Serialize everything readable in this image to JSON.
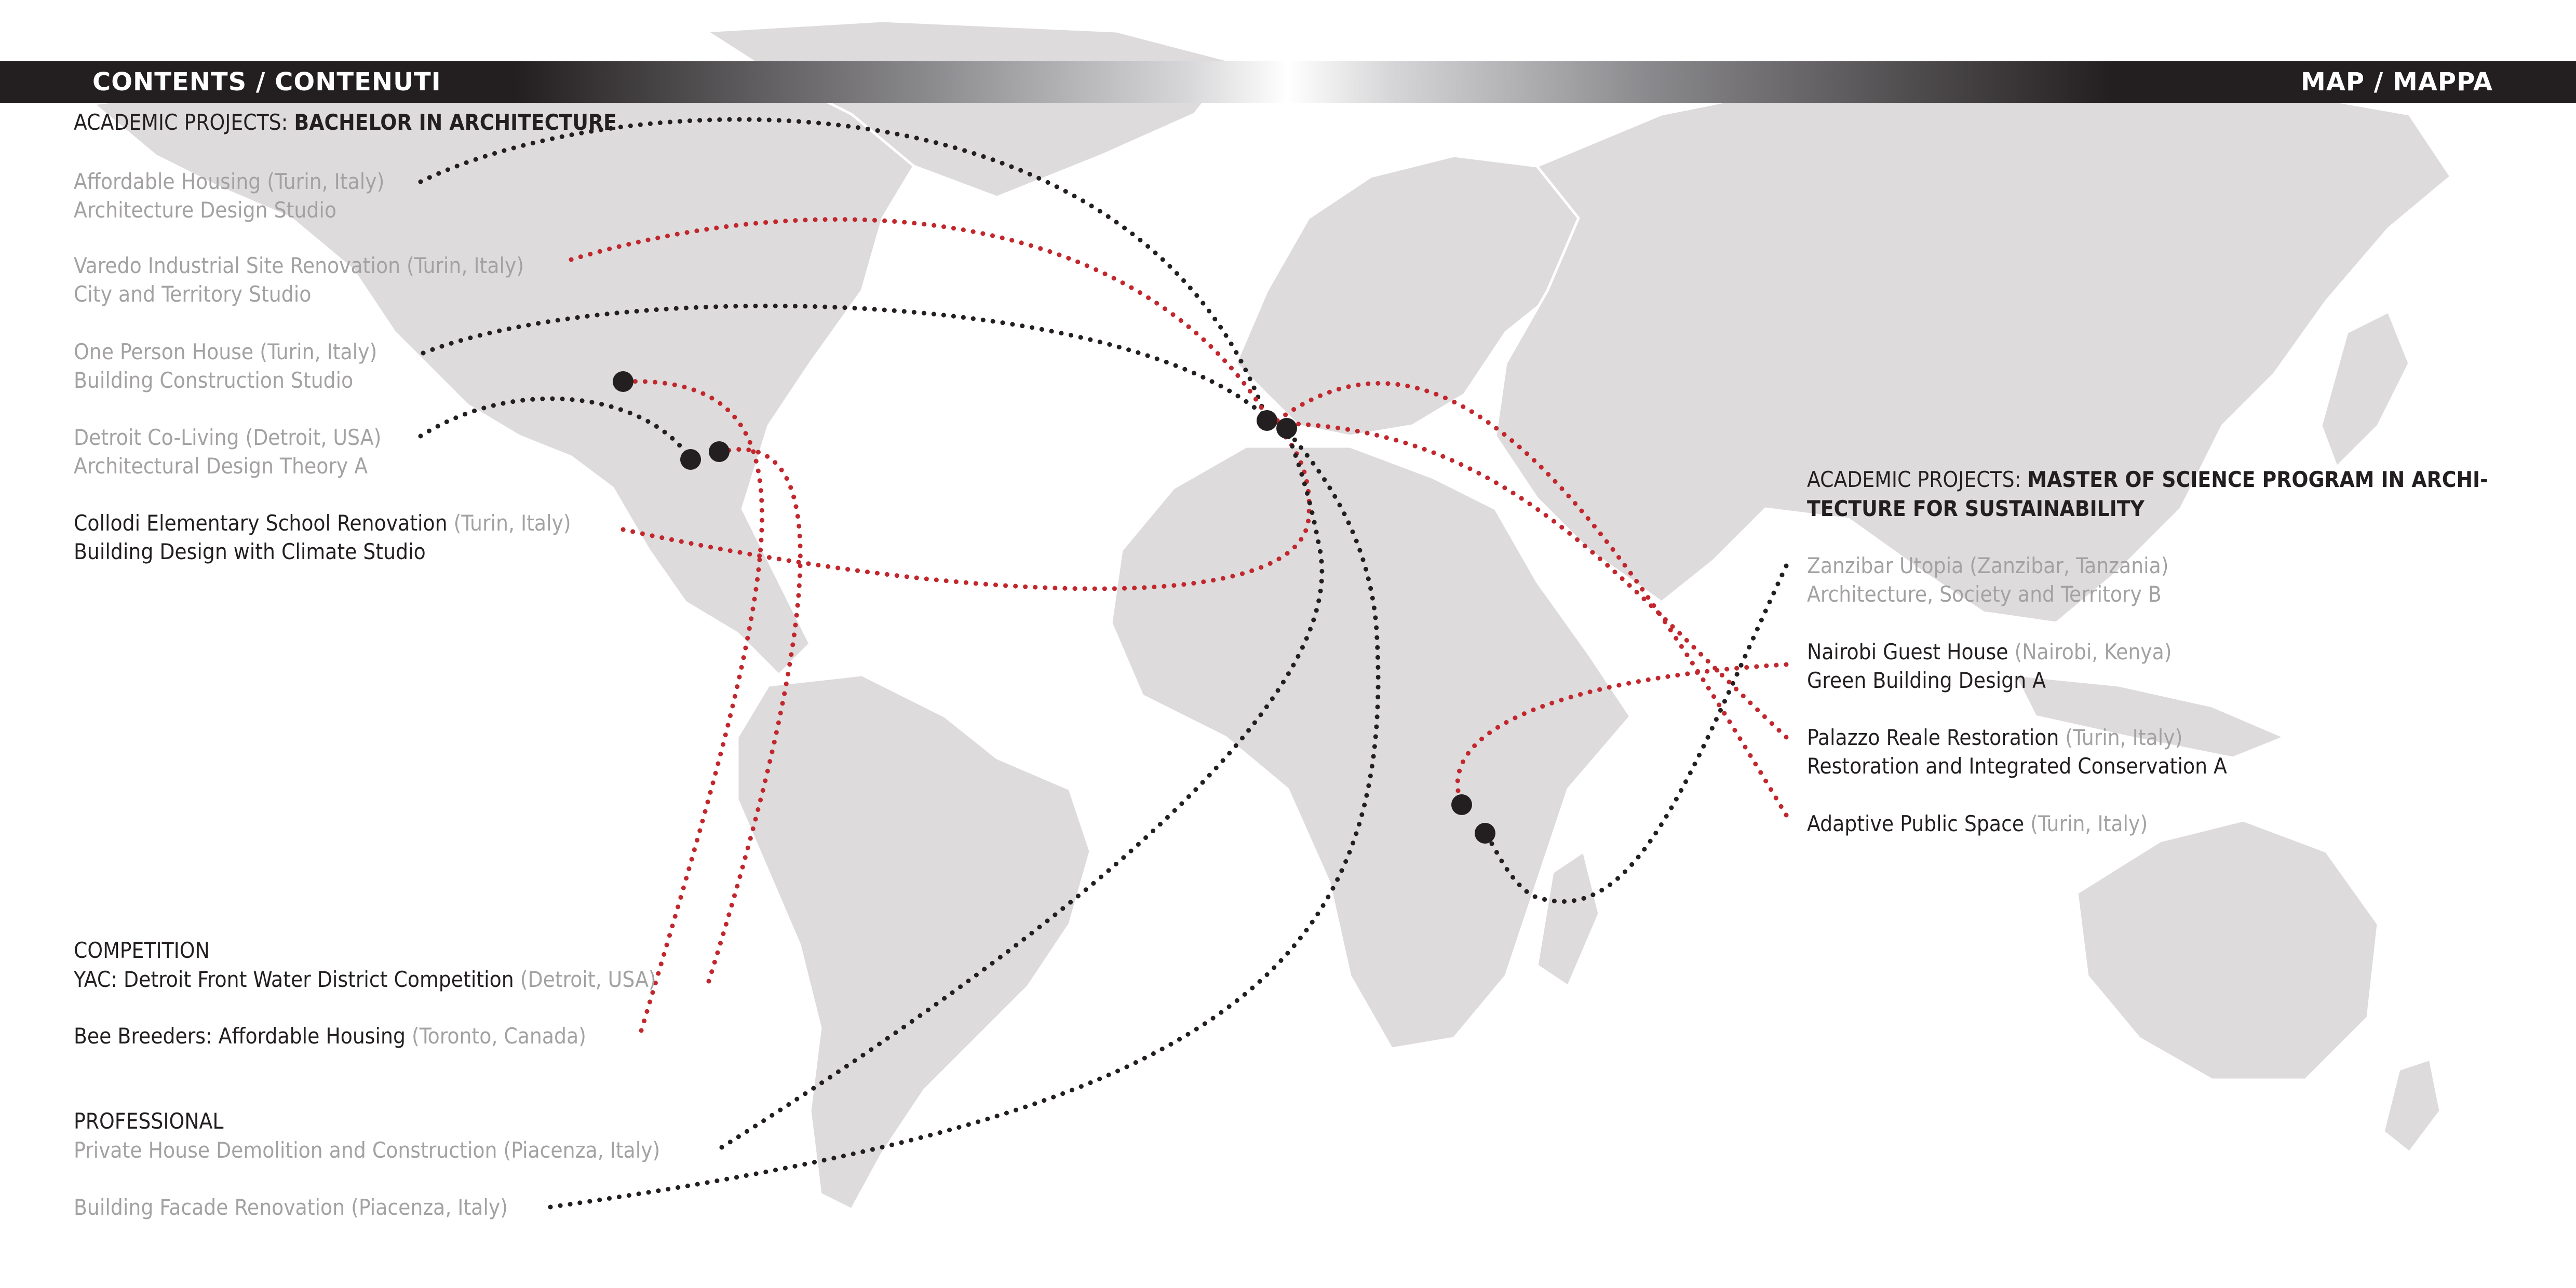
{
  "header": {
    "left_title": "CONTENTS / CONTENUTI",
    "right_title": "MAP / MAPPA"
  },
  "colors": {
    "banner_dark": "#231f20",
    "land": "#dddbdc",
    "route_black": "#231f20",
    "route_red": "#c1272d",
    "text_dark": "#231f20",
    "text_grey": "#a3a1a2",
    "pin": "#231f20"
  },
  "bachelor": {
    "prefix": "ACADEMIC PROJECTS: ",
    "name": "BACHELOR IN ARCHITECTURE",
    "items": [
      {
        "title": "Affordable Housing (Turin, Italy)",
        "location": "",
        "course": "Architecture Design Studio",
        "tone": "grey",
        "route": "black"
      },
      {
        "title": "Varedo Industrial Site Renovation (Turin, Italy)",
        "location": "",
        "course": "City and Territory Studio",
        "tone": "grey",
        "route": "red"
      },
      {
        "title": "One Person House (Turin, Italy)",
        "location": "",
        "course": "Building Construction Studio",
        "tone": "grey",
        "route": "black"
      },
      {
        "title": "Detroit Co-Living (Detroit, USA)",
        "location": "",
        "course": "Architectural Design Theory A",
        "tone": "grey",
        "route": "black"
      },
      {
        "title": "Collodi Elementary School Renovation",
        "location": " (Turin, Italy)",
        "course": "Building Design with Climate Studio",
        "tone": "dark",
        "route": "red"
      }
    ]
  },
  "competition": {
    "heading": "COMPETITION",
    "items": [
      {
        "title": "YAC: Detroit Front Water District Competition",
        "location": " (Detroit, USA)",
        "route": "red"
      },
      {
        "title": "Bee Breeders: Affordable Housing",
        "location": " (Toronto, Canada)",
        "route": "red"
      }
    ]
  },
  "professional": {
    "heading": "PROFESSIONAL",
    "items": [
      {
        "title": "Private House Demolition and Construction (Piacenza, Italy)",
        "route": "black"
      },
      {
        "title": "Building Facade Renovation  (Piacenza, Italy)",
        "route": "black"
      }
    ]
  },
  "master": {
    "prefix": "ACADEMIC PROJECTS: ",
    "name_line1": "MASTER OF SCIENCE PROGRAM IN ARCHI-",
    "name_line2": "TECTURE FOR SUSTAINABILITY",
    "items": [
      {
        "title": "Zanzibar Utopia (Zanzibar, Tanzania)",
        "location": "",
        "course": "Architecture, Society and Territory B",
        "tone": "grey",
        "route": "black"
      },
      {
        "title": "Nairobi Guest House",
        "location": " (Nairobi, Kenya)",
        "course": "Green Building Design A",
        "tone": "dark",
        "route": "red"
      },
      {
        "title": "Palazzo Reale Restoration",
        "location": " (Turin, Italy)",
        "course": "Restoration and Integrated Conservation A",
        "tone": "dark",
        "route": "red"
      },
      {
        "title": "Adaptive Public Space",
        "location": " (Turin, Italy)",
        "course": "",
        "tone": "dark",
        "route": "red"
      }
    ]
  },
  "map": {
    "pins": [
      "toronto-pin",
      "detroit-pin",
      "detroit-pin-2",
      "chicago-pin",
      "turin-pin",
      "piacenza-pin",
      "nairobi-pin",
      "zanzibar-pin"
    ]
  }
}
